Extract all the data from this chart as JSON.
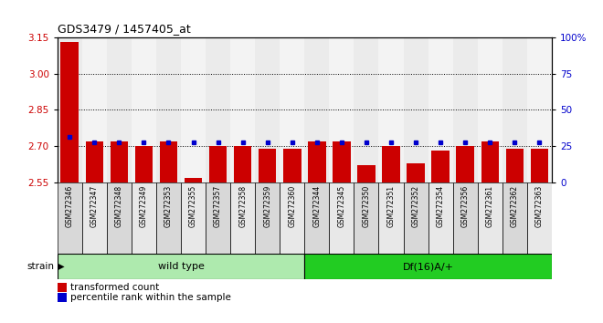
{
  "title": "GDS3479 / 1457405_at",
  "samples": [
    "GSM272346",
    "GSM272347",
    "GSM272348",
    "GSM272349",
    "GSM272353",
    "GSM272355",
    "GSM272357",
    "GSM272358",
    "GSM272359",
    "GSM272360",
    "GSM272344",
    "GSM272345",
    "GSM272350",
    "GSM272351",
    "GSM272352",
    "GSM272354",
    "GSM272356",
    "GSM272361",
    "GSM272362",
    "GSM272363"
  ],
  "red_values": [
    3.13,
    2.72,
    2.72,
    2.7,
    2.72,
    2.57,
    2.7,
    2.7,
    2.69,
    2.69,
    2.72,
    2.72,
    2.62,
    2.7,
    2.63,
    2.68,
    2.7,
    2.72,
    2.69,
    2.69
  ],
  "blue_values": [
    2.74,
    2.715,
    2.715,
    2.715,
    2.715,
    2.715,
    2.715,
    2.715,
    2.715,
    2.715,
    2.715,
    2.715,
    2.715,
    2.715,
    2.715,
    2.715,
    2.715,
    2.715,
    2.715,
    2.715
  ],
  "ylim_left": [
    2.55,
    3.15
  ],
  "ylim_right": [
    0,
    100
  ],
  "yticks_left": [
    2.55,
    2.7,
    2.85,
    3.0,
    3.15
  ],
  "yticks_right": [
    0,
    25,
    50,
    75,
    100
  ],
  "groups": [
    {
      "label": "wild type",
      "start": 0,
      "end": 10,
      "color": "#aeeaae"
    },
    {
      "label": "Df(16)A/+",
      "start": 10,
      "end": 20,
      "color": "#22cc22"
    }
  ],
  "bar_color": "#cc0000",
  "blue_marker_color": "#0000cc",
  "grid_color": "#000000",
  "ylabel_left_color": "#cc0000",
  "ylabel_right_color": "#0000cc",
  "strain_label": "strain",
  "legend_red": "transformed count",
  "legend_blue": "percentile rank within the sample",
  "col_bg_odd": "#d8d8d8",
  "col_bg_even": "#e8e8e8"
}
